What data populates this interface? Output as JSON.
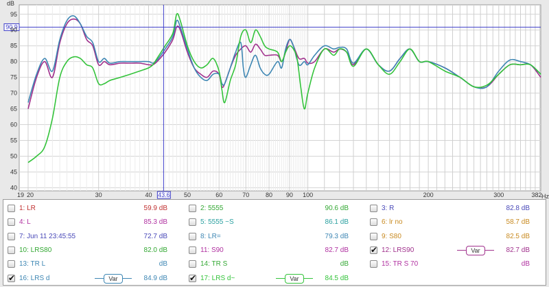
{
  "chart_data": {
    "type": "line",
    "ylabel": "dB",
    "xlabel": "Hz",
    "y_ticks": [
      "95",
      "90",
      "85",
      "80",
      "75",
      "70",
      "65",
      "60",
      "55",
      "50",
      "45",
      "40"
    ],
    "x_ticks": [
      "19",
      "20",
      "30",
      "40",
      "50",
      "60",
      "70",
      "80",
      "90",
      "100",
      "200",
      "300",
      "382"
    ],
    "ylim": [
      39,
      98
    ],
    "xlim": [
      19,
      382
    ],
    "x_scale": "log",
    "cursor": {
      "y": 90.9,
      "y_label": "90.9",
      "x": 43.6,
      "x_label": "43.6"
    },
    "series": [
      {
        "name": "12: LRS90",
        "color": "#a0308c",
        "points": [
          [
            20,
            65
          ],
          [
            21,
            75
          ],
          [
            22,
            80
          ],
          [
            23,
            75
          ],
          [
            24,
            86
          ],
          [
            25,
            92
          ],
          [
            26,
            93.5
          ],
          [
            27,
            92
          ],
          [
            28,
            87
          ],
          [
            29,
            85
          ],
          [
            30,
            79
          ],
          [
            31,
            80
          ],
          [
            32,
            79
          ],
          [
            34,
            79.5
          ],
          [
            36,
            79.5
          ],
          [
            38,
            79.5
          ],
          [
            40,
            79
          ],
          [
            41,
            79
          ],
          [
            42,
            80
          ],
          [
            44,
            83
          ],
          [
            46,
            87
          ],
          [
            47,
            91
          ],
          [
            48,
            90
          ],
          [
            50,
            83
          ],
          [
            52,
            78
          ],
          [
            54,
            76
          ],
          [
            56,
            75
          ],
          [
            58,
            77
          ],
          [
            60,
            76
          ],
          [
            61,
            72
          ],
          [
            62,
            73
          ],
          [
            64,
            78
          ],
          [
            66,
            82
          ],
          [
            68,
            84
          ],
          [
            70,
            85
          ],
          [
            72,
            83
          ],
          [
            74,
            85.5
          ],
          [
            76,
            84
          ],
          [
            78,
            82
          ],
          [
            80,
            82
          ],
          [
            84,
            82
          ],
          [
            86,
            80
          ],
          [
            88,
            83
          ],
          [
            90,
            87
          ],
          [
            92,
            85
          ],
          [
            95,
            81
          ],
          [
            98,
            81
          ],
          [
            100,
            79.5
          ],
          [
            104,
            80
          ],
          [
            110,
            84
          ],
          [
            116,
            83
          ],
          [
            120,
            84
          ],
          [
            125,
            83
          ],
          [
            130,
            79
          ],
          [
            140,
            84
          ],
          [
            150,
            79
          ],
          [
            160,
            77
          ],
          [
            170,
            81
          ],
          [
            180,
            84
          ],
          [
            190,
            80
          ],
          [
            200,
            80
          ],
          [
            220,
            78
          ],
          [
            240,
            75
          ],
          [
            260,
            72
          ],
          [
            280,
            72
          ],
          [
            300,
            76
          ],
          [
            320,
            79
          ],
          [
            340,
            79
          ],
          [
            360,
            79
          ],
          [
            382,
            75
          ]
        ]
      },
      {
        "name": "16: LRS d",
        "color": "#3d86b3",
        "points": [
          [
            20,
            67
          ],
          [
            21,
            76
          ],
          [
            22,
            81
          ],
          [
            23,
            77
          ],
          [
            24,
            87
          ],
          [
            25,
            93
          ],
          [
            26,
            94.5
          ],
          [
            27,
            92
          ],
          [
            28,
            88
          ],
          [
            29,
            86
          ],
          [
            30,
            80
          ],
          [
            31,
            81
          ],
          [
            32,
            79.5
          ],
          [
            34,
            80
          ],
          [
            36,
            80
          ],
          [
            38,
            80
          ],
          [
            40,
            80
          ],
          [
            41,
            79.5
          ],
          [
            42,
            80.5
          ],
          [
            44,
            84
          ],
          [
            46,
            88
          ],
          [
            47,
            93
          ],
          [
            48,
            91
          ],
          [
            50,
            84
          ],
          [
            52,
            78
          ],
          [
            54,
            75
          ],
          [
            56,
            74
          ],
          [
            58,
            76
          ],
          [
            60,
            76
          ],
          [
            61,
            73
          ],
          [
            62,
            73
          ],
          [
            64,
            78
          ],
          [
            66,
            83
          ],
          [
            68,
            86
          ],
          [
            69,
            78
          ],
          [
            70,
            75
          ],
          [
            72,
            79
          ],
          [
            74,
            82
          ],
          [
            76,
            78
          ],
          [
            78,
            76
          ],
          [
            80,
            76
          ],
          [
            84,
            80
          ],
          [
            86,
            78
          ],
          [
            88,
            84
          ],
          [
            90,
            87
          ],
          [
            92,
            85
          ],
          [
            95,
            79
          ],
          [
            98,
            80
          ],
          [
            100,
            79
          ],
          [
            104,
            82
          ],
          [
            110,
            85
          ],
          [
            116,
            84
          ],
          [
            120,
            84.5
          ],
          [
            125,
            84
          ],
          [
            130,
            79.5
          ],
          [
            140,
            84
          ],
          [
            150,
            79
          ],
          [
            160,
            77
          ],
          [
            170,
            81
          ],
          [
            180,
            84
          ],
          [
            190,
            80
          ],
          [
            200,
            80
          ],
          [
            220,
            78
          ],
          [
            240,
            75
          ],
          [
            260,
            72
          ],
          [
            280,
            72
          ],
          [
            300,
            77
          ],
          [
            320,
            80.5
          ],
          [
            340,
            80
          ],
          [
            360,
            79
          ],
          [
            382,
            76
          ]
        ]
      },
      {
        "name": "17: LRS d~",
        "color": "#33c33a",
        "points": [
          [
            20,
            48
          ],
          [
            21,
            50
          ],
          [
            22,
            53
          ],
          [
            23,
            62
          ],
          [
            24,
            75
          ],
          [
            25,
            80
          ],
          [
            26,
            81.5
          ],
          [
            27,
            81
          ],
          [
            28,
            79
          ],
          [
            29,
            78
          ],
          [
            30,
            73
          ],
          [
            31,
            73
          ],
          [
            32,
            74
          ],
          [
            34,
            75
          ],
          [
            36,
            76
          ],
          [
            38,
            77
          ],
          [
            40,
            78
          ],
          [
            41,
            79
          ],
          [
            42,
            81
          ],
          [
            44,
            85
          ],
          [
            46,
            89
          ],
          [
            47,
            95
          ],
          [
            48,
            93
          ],
          [
            50,
            85
          ],
          [
            52,
            80
          ],
          [
            54,
            78
          ],
          [
            56,
            79
          ],
          [
            58,
            81
          ],
          [
            60,
            77
          ],
          [
            61,
            71
          ],
          [
            62,
            67
          ],
          [
            64,
            74
          ],
          [
            66,
            79
          ],
          [
            68,
            88
          ],
          [
            70,
            90
          ],
          [
            72,
            86
          ],
          [
            74,
            90
          ],
          [
            76,
            88
          ],
          [
            78,
            85
          ],
          [
            80,
            84
          ],
          [
            84,
            83
          ],
          [
            86,
            80
          ],
          [
            88,
            83
          ],
          [
            90,
            85
          ],
          [
            92,
            84
          ],
          [
            94,
            81
          ],
          [
            96,
            72
          ],
          [
            98,
            65
          ],
          [
            100,
            70
          ],
          [
            104,
            78
          ],
          [
            110,
            84
          ],
          [
            116,
            82
          ],
          [
            120,
            84
          ],
          [
            125,
            83
          ],
          [
            130,
            78.5
          ],
          [
            140,
            84
          ],
          [
            150,
            79
          ],
          [
            160,
            76
          ],
          [
            170,
            80
          ],
          [
            180,
            84
          ],
          [
            190,
            80
          ],
          [
            200,
            80
          ],
          [
            220,
            77
          ],
          [
            240,
            75
          ],
          [
            260,
            72
          ],
          [
            280,
            72.5
          ],
          [
            300,
            76
          ],
          [
            320,
            79
          ],
          [
            340,
            79
          ],
          [
            360,
            79
          ],
          [
            382,
            76
          ]
        ]
      }
    ]
  },
  "legend": {
    "rows": [
      [
        {
          "checked": false,
          "name": "1: LR",
          "value": "59.9 dB",
          "color": "#c03030",
          "var": false
        },
        {
          "checked": false,
          "name": "2: 5555",
          "value": "90.6 dB",
          "color": "#33a833",
          "var": false
        },
        {
          "checked": false,
          "name": "3: R",
          "value": "82.8 dB",
          "color": "#4848b8",
          "var": false
        }
      ],
      [
        {
          "checked": false,
          "name": "4: L",
          "value": "85.3 dB",
          "color": "#b030a0",
          "var": false
        },
        {
          "checked": false,
          "name": "5: 5555 ~S",
          "value": "86.1 dB",
          "color": "#2aa0a0",
          "var": false
        },
        {
          "checked": false,
          "name": "6: lr no",
          "value": "58.7 dB",
          "color": "#c88a20",
          "var": false
        }
      ],
      [
        {
          "checked": false,
          "name": "7: Jun 11 23:45:55",
          "value": "72.7 dB",
          "color": "#4848b8",
          "var": false
        },
        {
          "checked": false,
          "name": "8: LR=",
          "value": "79.3 dB",
          "color": "#3d86b3",
          "var": false
        },
        {
          "checked": false,
          "name": "9: S80",
          "value": "82.5 dB",
          "color": "#c88a20",
          "var": false
        }
      ],
      [
        {
          "checked": false,
          "name": "10: LRS80",
          "value": "82.0 dB",
          "color": "#33a833",
          "var": false
        },
        {
          "checked": false,
          "name": "11: S90",
          "value": "82.7 dB",
          "color": "#b030a0",
          "var": false
        },
        {
          "checked": true,
          "name": "12: LRS90",
          "value": "82.7 dB",
          "color": "#a0308c",
          "var": true,
          "var_label": "Var"
        }
      ],
      [
        {
          "checked": false,
          "name": "13: TR L",
          "value": "dB",
          "color": "#3d86b3",
          "var": false
        },
        {
          "checked": false,
          "name": "14: TR S",
          "value": "dB",
          "color": "#33a833",
          "var": false
        },
        {
          "checked": false,
          "name": "15: TR S 70",
          "value": "dB",
          "color": "#b030a0",
          "var": false
        }
      ],
      [
        {
          "checked": true,
          "name": "16: LRS d",
          "value": "84.9 dB",
          "color": "#3d86b3",
          "var": true,
          "var_label": "Var"
        },
        {
          "checked": true,
          "name": "17: LRS d~",
          "value": "84.5 dB",
          "color": "#33c33a",
          "var": true,
          "var_label": "Var"
        },
        null
      ]
    ]
  }
}
